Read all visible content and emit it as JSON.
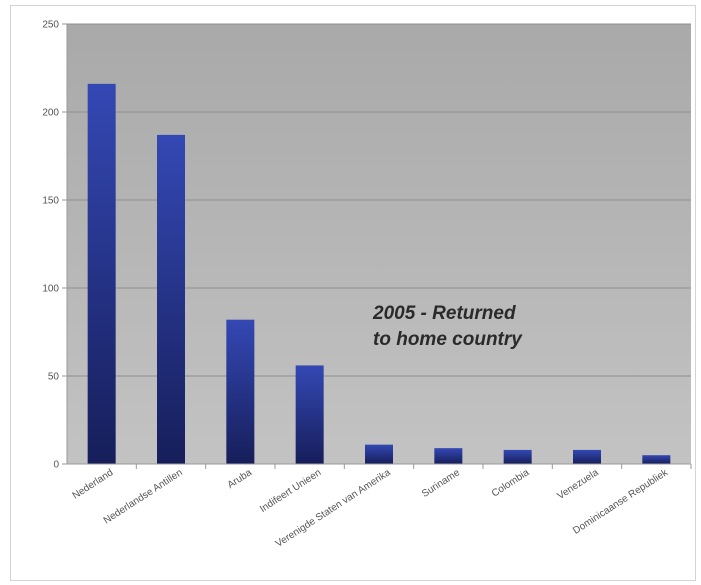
{
  "chart_data": {
    "type": "bar",
    "title": "",
    "xlabel": "",
    "ylabel": "",
    "ylim": [
      0,
      250
    ],
    "yticks": [
      0,
      50,
      100,
      150,
      200,
      250
    ],
    "grid": true,
    "categories": [
      "Nederland",
      "Nederlandse Antillen",
      "Aruba",
      "Indifeert Unieen",
      "Verenigde Staten van Amerika",
      "Suriname",
      "Colombia",
      "Venezuela",
      "Dominicaanse Republiek"
    ],
    "values": [
      216,
      187,
      82,
      56,
      11,
      9,
      8,
      8,
      5
    ],
    "bar_color": "#2b3b9c",
    "annotation": [
      "2005 - Returned",
      "to home country"
    ]
  }
}
